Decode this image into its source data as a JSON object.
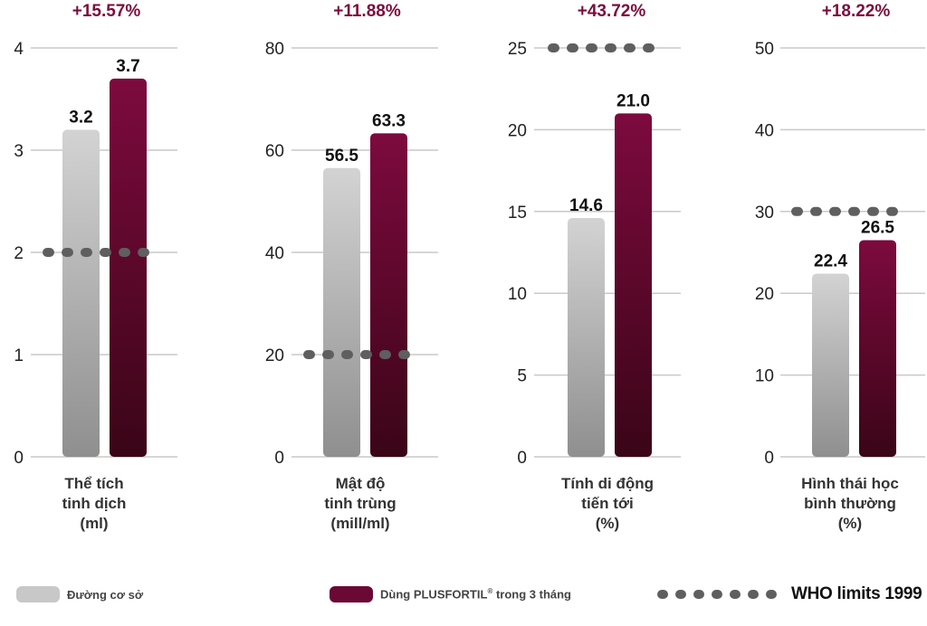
{
  "chart_data": [
    {
      "type": "bar",
      "change_label": "+15.57%",
      "xlabel": [
        "Thể tích",
        "tinh dịch",
        "(ml)"
      ],
      "ylim": [
        0,
        4
      ],
      "yticks": [
        "0",
        "1",
        "2",
        "3",
        "4"
      ],
      "categories": [
        "Đường cơ sở",
        "Dùng PLUSFORTIL® trong 3 tháng"
      ],
      "values": [
        3.2,
        3.7
      ],
      "value_labels": [
        "3.2",
        "3.7"
      ],
      "who_limit": 2
    },
    {
      "type": "bar",
      "change_label": "+11.88%",
      "xlabel": [
        "Mật độ",
        "tinh trùng",
        "(mill/ml)"
      ],
      "ylim": [
        0,
        80
      ],
      "yticks": [
        "0",
        "20",
        "40",
        "60",
        "80"
      ],
      "categories": [
        "Đường cơ sở",
        "Dùng PLUSFORTIL® trong 3 tháng"
      ],
      "values": [
        56.5,
        63.3
      ],
      "value_labels": [
        "56.5",
        "63.3"
      ],
      "who_limit": 20
    },
    {
      "type": "bar",
      "change_label": "+43.72%",
      "xlabel": [
        "Tính di động",
        "tiến tới",
        "(%)"
      ],
      "ylim": [
        0,
        25
      ],
      "yticks": [
        "0",
        "5",
        "10",
        "15",
        "20",
        "25"
      ],
      "categories": [
        "Đường cơ sở",
        "Dùng PLUSFORTIL® trong 3 tháng"
      ],
      "values": [
        14.6,
        21.0
      ],
      "value_labels": [
        "14.6",
        "21.0"
      ],
      "who_limit": 25
    },
    {
      "type": "bar",
      "change_label": "+18.22%",
      "xlabel": [
        "Hình thái học",
        "bình thường",
        "(%)"
      ],
      "ylim": [
        0,
        50
      ],
      "yticks": [
        "0",
        "10",
        "20",
        "30",
        "40",
        "50"
      ],
      "categories": [
        "Đường cơ sở",
        "Dùng PLUSFORTIL® trong 3 tháng"
      ],
      "values": [
        22.4,
        26.5
      ],
      "value_labels": [
        "22.4",
        "26.5"
      ],
      "who_limit": 30
    }
  ],
  "legend": {
    "baseline_label": "Đường cơ sở",
    "treatment_label_main": "Dùng PLUSFORTIL",
    "treatment_label_sup": "®",
    "treatment_label_tail": " trong 3 tháng",
    "who_label": "WHO limits 1999"
  },
  "colors": {
    "baseline_top": "#d3d3d3",
    "baseline_bottom": "#8f8f8f",
    "treatment_top": "#7d0a3e",
    "treatment_bottom": "#3a0517",
    "change_label": "#7a0d3c",
    "grid": "#c9c9c9",
    "who_dots": "#5f5f5f"
  },
  "legend_placement": "bottom",
  "grid": true
}
